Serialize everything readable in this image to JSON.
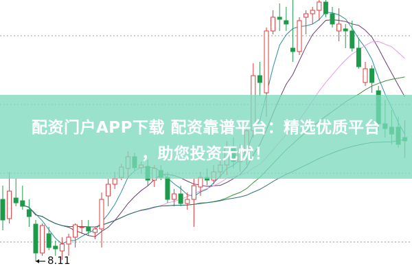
{
  "banner": {
    "line1": "配资门户APP下载 配资靠谱平台：精选优质平台",
    "line2": "，助您投资无忧！"
  },
  "chart_data": {
    "type": "candlestick",
    "ylim": [
      7.91,
      11.91
    ],
    "gridlines": [
      8.39,
      9.39,
      10.39,
      11.39
    ],
    "grid": "dotted horizontal",
    "low_marker": {
      "text": "8.11",
      "value": 8.11,
      "candle_index": 5
    },
    "colors": {
      "up": "#e0393b",
      "down": "#1d9b4b",
      "ma5": "#2b8c9c",
      "ma10": "#6b3c6b",
      "ma20": "#e59be5",
      "ma30": "#3f8f3f",
      "ma60": "#2f7070"
    },
    "moving_averages": [
      5,
      10,
      20,
      30,
      60
    ],
    "ohlc": [
      [
        9.01,
        9.21,
        8.56,
        8.71
      ],
      [
        8.73,
        9.41,
        8.66,
        9.13
      ],
      [
        9.03,
        9.31,
        8.91,
        8.96
      ],
      [
        8.99,
        9.21,
        8.86,
        8.91
      ],
      [
        8.86,
        9.01,
        8.61,
        8.76
      ],
      [
        8.65,
        8.71,
        8.11,
        8.23
      ],
      [
        8.23,
        8.66,
        8.19,
        8.63
      ],
      [
        8.51,
        8.61,
        8.27,
        8.31
      ],
      [
        8.33,
        8.41,
        8.19,
        8.29
      ],
      [
        8.26,
        8.46,
        8.13,
        8.36
      ],
      [
        8.36,
        8.51,
        8.19,
        8.46
      ],
      [
        8.46,
        8.66,
        8.31,
        8.64
      ],
      [
        8.61,
        8.71,
        8.51,
        8.61
      ],
      [
        8.61,
        8.71,
        8.49,
        8.55
      ],
      [
        8.53,
        8.61,
        8.43,
        8.58
      ],
      [
        8.58,
        9.11,
        8.31,
        9.01
      ],
      [
        9.06,
        9.31,
        8.91,
        9.23
      ],
      [
        9.23,
        9.41,
        9.16,
        9.31
      ],
      [
        9.33,
        9.53,
        9.29,
        9.48
      ],
      [
        9.46,
        9.71,
        9.31,
        9.63
      ],
      [
        9.63,
        9.69,
        9.43,
        9.47
      ],
      [
        9.47,
        9.56,
        9.39,
        9.51
      ],
      [
        9.49,
        9.59,
        9.21,
        9.29
      ],
      [
        9.29,
        9.51,
        9.19,
        9.46
      ],
      [
        9.43,
        9.51,
        9.29,
        9.33
      ],
      [
        9.33,
        9.41,
        8.96,
        9.01
      ],
      [
        9.01,
        9.16,
        8.91,
        9.09
      ],
      [
        9.09,
        9.21,
        8.91,
        8.95
      ],
      [
        8.95,
        9.11,
        8.86,
        9.01
      ],
      [
        9.01,
        9.31,
        8.61,
        9.21
      ],
      [
        9.19,
        9.41,
        9.06,
        9.33
      ],
      [
        9.33,
        9.46,
        9.21,
        9.29
      ],
      [
        9.29,
        9.51,
        9.23,
        9.41
      ],
      [
        9.41,
        9.61,
        9.31,
        9.51
      ],
      [
        9.51,
        9.86,
        9.36,
        9.76
      ],
      [
        9.76,
        9.91,
        9.46,
        9.56
      ],
      [
        9.56,
        9.81,
        9.41,
        9.69
      ],
      [
        9.69,
        10.11,
        9.51,
        10.01
      ],
      [
        10.01,
        10.99,
        9.91,
        10.81
      ],
      [
        10.81,
        11.01,
        10.51,
        10.71
      ],
      [
        10.56,
        11.51,
        10.21,
        11.46
      ],
      [
        11.46,
        11.76,
        11.41,
        11.66
      ],
      [
        11.66,
        11.86,
        11.46,
        11.63
      ],
      [
        11.61,
        11.81,
        11.46,
        11.56
      ],
      [
        11.21,
        11.91,
        11.01,
        11.16
      ],
      [
        11.16,
        11.66,
        11.11,
        11.61
      ],
      [
        11.66,
        11.76,
        11.41,
        11.71
      ],
      [
        11.71,
        11.81,
        11.56,
        11.76
      ],
      [
        11.76,
        11.91,
        11.61,
        11.88
      ],
      [
        11.88,
        11.91,
        11.66,
        11.71
      ],
      [
        11.71,
        11.81,
        11.51,
        11.56
      ],
      [
        11.46,
        11.79,
        11.31,
        11.56
      ],
      [
        11.49,
        11.56,
        11.21,
        11.46
      ],
      [
        11.46,
        11.61,
        11.16,
        11.21
      ],
      [
        11.21,
        11.36,
        10.91,
        10.94
      ],
      [
        10.71,
        11.01,
        10.66,
        10.91
      ],
      [
        10.91,
        10.96,
        10.56,
        10.71
      ],
      [
        10.59,
        10.66,
        10.01,
        10.11
      ],
      [
        10.11,
        10.46,
        9.91,
        10.04
      ],
      [
        10.06,
        10.31,
        9.81,
        9.96
      ],
      [
        10.06,
        10.21,
        9.76,
        9.81
      ],
      [
        9.91,
        10.16,
        9.61,
        9.86
      ]
    ]
  }
}
